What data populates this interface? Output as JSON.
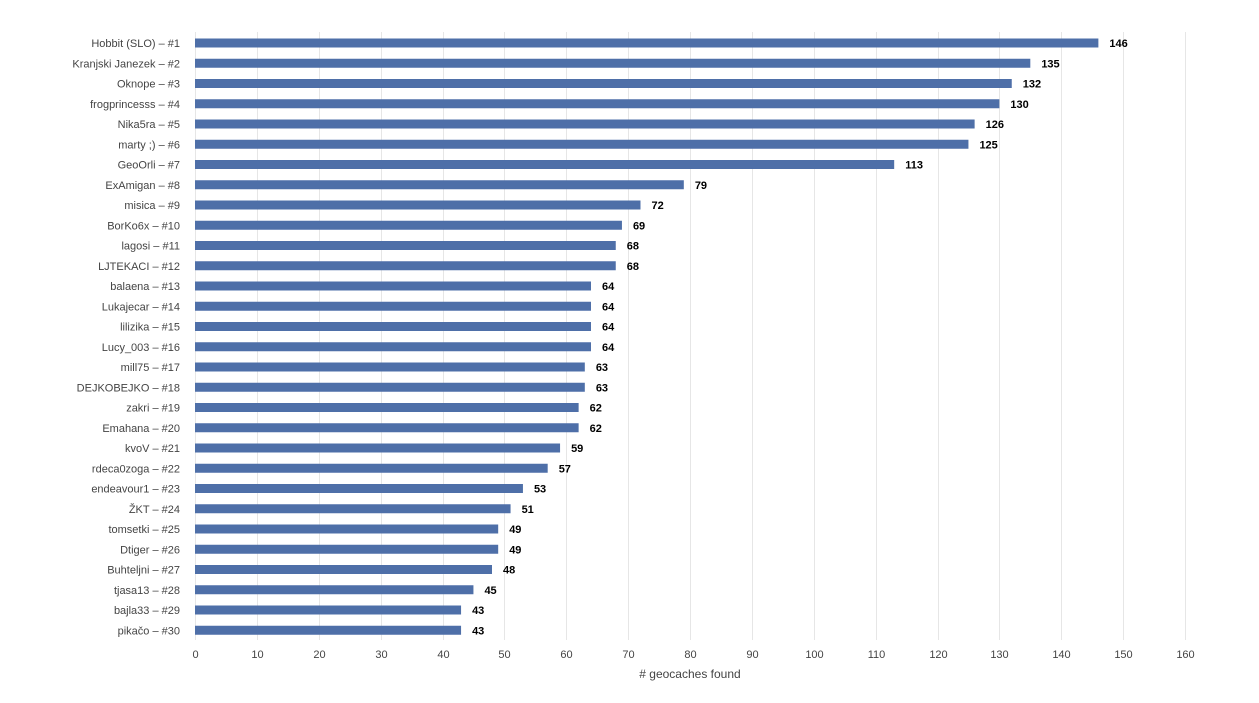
{
  "chart_data": {
    "type": "bar",
    "orientation": "horizontal",
    "categories": [
      "Hobbit (SLO) – #1",
      "Kranjski Janezek – #2",
      "Oknope – #3",
      "frogprincesss – #4",
      "Nika5ra – #5",
      "marty ;) – #6",
      "GeoOrli – #7",
      "ExAmigan – #8",
      "misica – #9",
      "BorKo6x – #10",
      "lagosi – #11",
      "LJTEKACI – #12",
      "balaena – #13",
      "Lukajecar – #14",
      "lilizika – #15",
      "Lucy_003 – #16",
      "mill75 – #17",
      "DEJKOBEJKO – #18",
      "zakri – #19",
      "Emahana – #20",
      "kvoV – #21",
      "rdeca0zoga – #22",
      "endeavour1 – #23",
      "ŽKT – #24",
      "tomsetki – #25",
      "Dtiger – #26",
      "Buhteljni – #27",
      "tjasa13 – #28",
      "bajla33 – #29",
      "pikačo – #30"
    ],
    "values": [
      146,
      135,
      132,
      130,
      126,
      125,
      113,
      79,
      72,
      69,
      68,
      68,
      64,
      64,
      64,
      64,
      63,
      63,
      62,
      62,
      59,
      57,
      53,
      51,
      49,
      49,
      48,
      45,
      43,
      43
    ],
    "xlabel": "# geocaches found",
    "ylabel": "",
    "xlim": [
      0,
      160
    ],
    "ticks": [
      0,
      10,
      20,
      30,
      40,
      50,
      60,
      70,
      80,
      90,
      100,
      110,
      120,
      130,
      140,
      150,
      160
    ],
    "grid": true,
    "data_labels": true,
    "colors": {
      "bar": "#4e6fa8",
      "grid": "#e6e6e6",
      "text": "#444444",
      "value_text": "#000000"
    }
  }
}
